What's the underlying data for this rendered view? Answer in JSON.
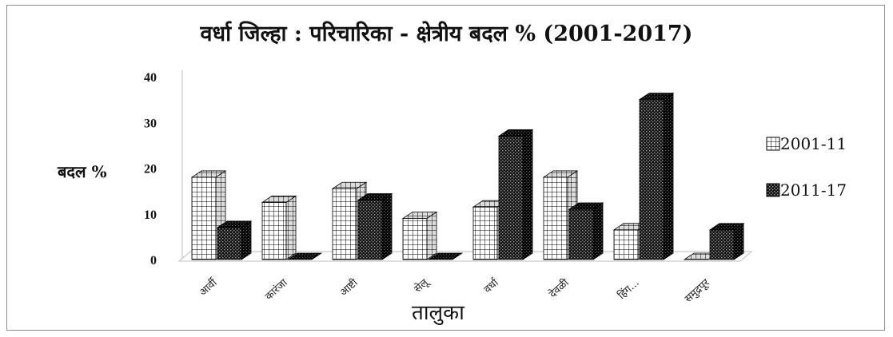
{
  "chart_data": {
    "type": "bar",
    "title": "वर्धा जिल्हा : परिचारिका - क्षेत्रीय बदल % (2001-2017)",
    "xlabel": "तालुका",
    "ylabel": "बदल %",
    "ylim": [
      0,
      40
    ],
    "yticks": [
      0,
      10,
      20,
      30,
      40
    ],
    "grid": false,
    "legend_position": "right",
    "categories": [
      "आर्वी",
      "कारंजा",
      "आष्टी",
      "सेलू",
      "वर्धा",
      "देवळी",
      "हिंग...",
      "समुद्रपूर"
    ],
    "series": [
      {
        "name": "2001-11",
        "pattern": "grid",
        "values": [
          18,
          12.5,
          15.5,
          9,
          11.5,
          18,
          6.5,
          0
        ]
      },
      {
        "name": "2011-17",
        "pattern": "dots",
        "values": [
          7,
          0,
          13,
          0,
          27,
          11,
          35,
          6.5
        ]
      }
    ],
    "colors": {
      "front": "#ffffff",
      "dark": "#1a1a1a",
      "grid_pattern": "#000000"
    }
  }
}
